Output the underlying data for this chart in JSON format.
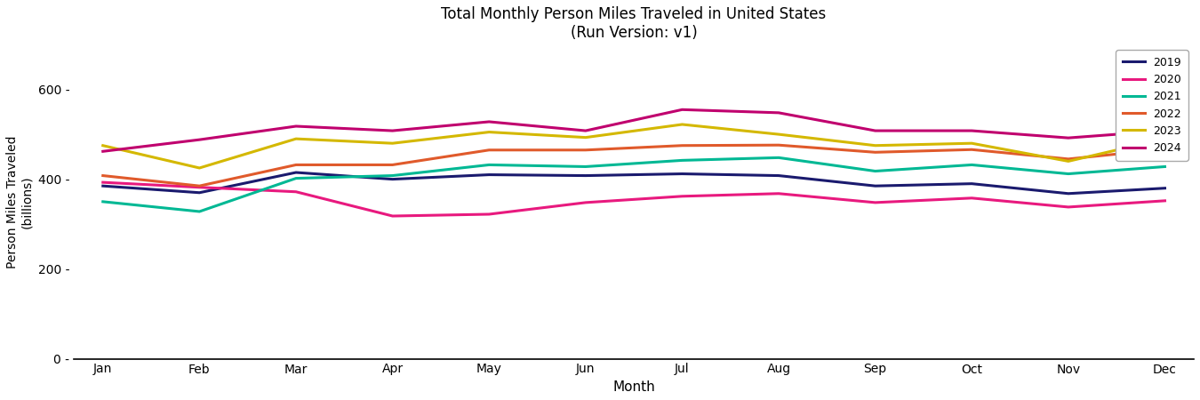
{
  "title": "Total Monthly Person Miles Traveled in United States\n(Run Version: v1)",
  "xlabel": "Month",
  "ylabel": "Person Miles Traveled\n(billions)",
  "months": [
    "Jan",
    "Feb",
    "Mar",
    "Apr",
    "May",
    "Jun",
    "Jul",
    "Aug",
    "Sep",
    "Oct",
    "Nov",
    "Dec"
  ],
  "series": {
    "2019": [
      385,
      370,
      415,
      400,
      410,
      408,
      412,
      408,
      385,
      390,
      368,
      380
    ],
    "2020": [
      393,
      382,
      372,
      318,
      322,
      348,
      362,
      368,
      348,
      358,
      338,
      352
    ],
    "2021": [
      350,
      328,
      402,
      408,
      432,
      428,
      442,
      448,
      418,
      432,
      412,
      428
    ],
    "2022": [
      408,
      385,
      432,
      432,
      465,
      465,
      475,
      476,
      460,
      466,
      445,
      467
    ],
    "2023": [
      475,
      425,
      490,
      480,
      505,
      493,
      522,
      500,
      475,
      480,
      440,
      490
    ],
    "2024": [
      462,
      488,
      518,
      508,
      528,
      508,
      555,
      548,
      508,
      508,
      492,
      508
    ]
  },
  "colors": {
    "2019": "#1a1a6e",
    "2020": "#e8197e",
    "2021": "#00b894",
    "2022": "#e05a2b",
    "2023": "#d4b800",
    "2024": "#c0006e"
  },
  "ylim": [
    0,
    700
  ],
  "yticks": [
    0,
    200,
    400,
    600
  ],
  "line_width": 2.2,
  "background_color": "#ffffff",
  "figsize": [
    13.5,
    4.5
  ],
  "dpi": 100
}
